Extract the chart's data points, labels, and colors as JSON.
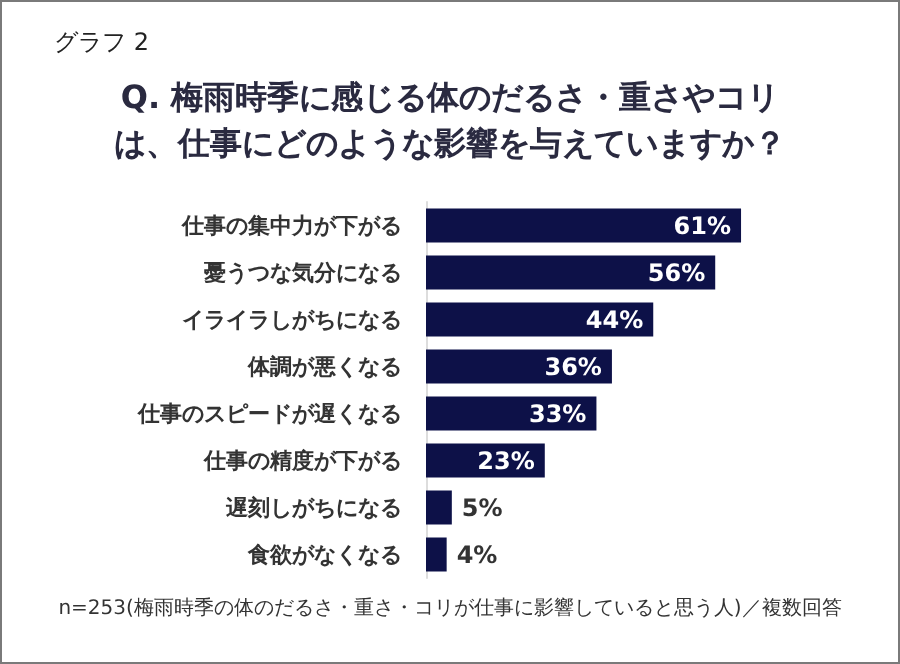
{
  "chart_data": {
    "type": "bar",
    "orientation": "horizontal",
    "title": "グラフ 2",
    "subtitle": "Q. 梅雨時季に感じる体のだるさ・重さやコリは、仕事にどのような影響を与えていますか？",
    "categories": [
      "仕事の集中力が下がる",
      "憂うつな気分になる",
      "イライラしがちになる",
      "体調が悪くなる",
      "仕事のスピードが遅くなる",
      "仕事の精度が下がる",
      "遅刻しがちになる",
      "食欲がなくなる"
    ],
    "values": [
      61,
      56,
      44,
      36,
      33,
      23,
      5,
      4
    ],
    "value_labels": [
      "61%",
      "56%",
      "44%",
      "36%",
      "33%",
      "23%",
      "5%",
      "4%"
    ],
    "color": "#0d1148",
    "annotations": [
      "n=253(梅雨時季の体のだるさ・重さ・コリが仕事に影響していると思う人)／複数回答"
    ]
  }
}
